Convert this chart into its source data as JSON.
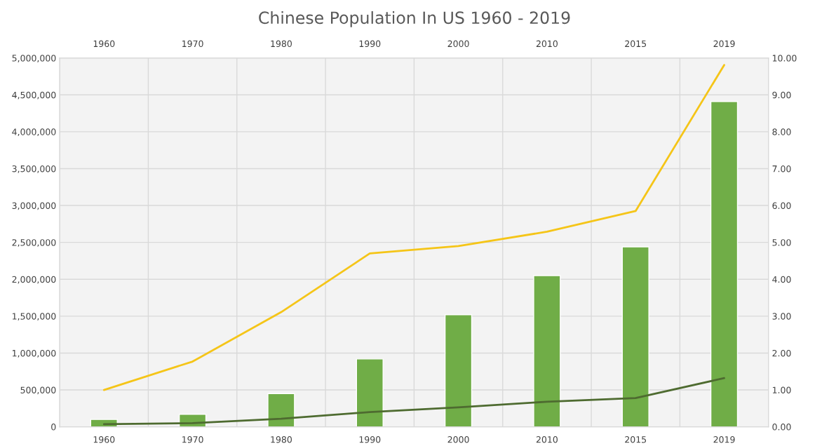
{
  "chart_data": {
    "type": "bar",
    "title": "Chinese Population In US 1960 - 2019",
    "categories": [
      "1960",
      "1970",
      "1980",
      "1990",
      "2000",
      "2010",
      "2015",
      "2019"
    ],
    "series": [
      {
        "color": "#70ad47",
        "values": [
          100000,
          170000,
          450000,
          920000,
          1520000,
          2050000,
          2440000,
          4410000
        ]
      },
      {
        "type": "line",
        "axis": "y2",
        "color": "#f5c518",
        "values": [
          1.0,
          1.77,
          3.11,
          4.7,
          4.9,
          5.29,
          5.85,
          9.81
        ]
      },
      {
        "type": "line",
        "axis": "y2",
        "color": "#4e6b30",
        "values": [
          0.07,
          0.1,
          0.22,
          0.4,
          0.53,
          0.68,
          0.78,
          1.32
        ]
      }
    ],
    "ylim": [
      0,
      5000000
    ],
    "yticks": [
      {
        "value": 0,
        "label": "0"
      },
      {
        "value": 500000,
        "label": "500,000"
      },
      {
        "value": 1000000,
        "label": "1,000,000"
      },
      {
        "value": 1500000,
        "label": "1,500,000"
      },
      {
        "value": 2000000,
        "label": "2,000,000"
      },
      {
        "value": 2500000,
        "label": "2,500,000"
      },
      {
        "value": 3000000,
        "label": "3,000,000"
      },
      {
        "value": 3500000,
        "label": "3,500,000"
      },
      {
        "value": 4000000,
        "label": "4,000,000"
      },
      {
        "value": 4500000,
        "label": "4,500,000"
      },
      {
        "value": 5000000,
        "label": "5,000,000"
      }
    ],
    "y2lim": [
      0,
      10
    ],
    "y2ticks": [
      {
        "value": 0,
        "label": "0.00"
      },
      {
        "value": 1,
        "label": "1.00"
      },
      {
        "value": 2,
        "label": "2.00"
      },
      {
        "value": 3,
        "label": "3.00"
      },
      {
        "value": 4,
        "label": "4.00"
      },
      {
        "value": 5,
        "label": "5.00"
      },
      {
        "value": 6,
        "label": "6.00"
      },
      {
        "value": 7,
        "label": "7.00"
      },
      {
        "value": 8,
        "label": "8.00"
      },
      {
        "value": 9,
        "label": "9.00"
      },
      {
        "value": 10,
        "label": "10.00"
      }
    ],
    "grid": true
  }
}
